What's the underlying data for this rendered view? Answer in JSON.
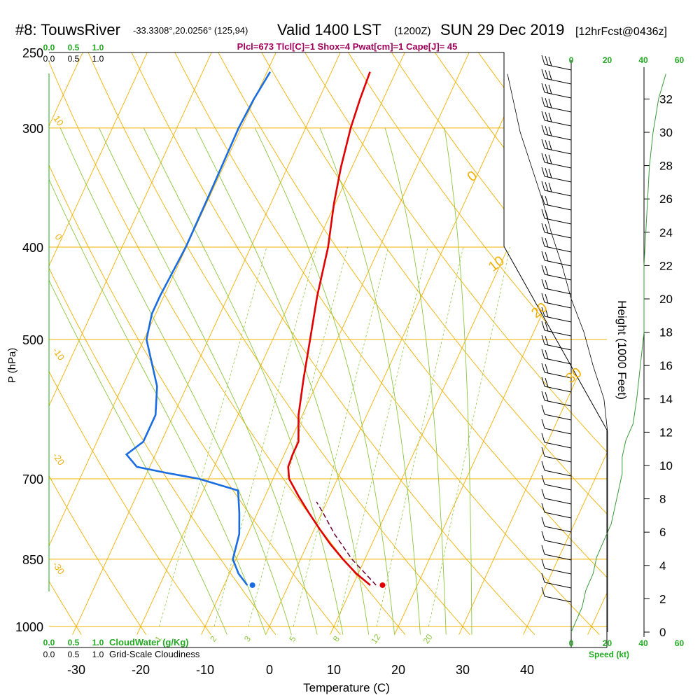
{
  "header": {
    "station": "#8: TouwsRiver",
    "coords": "-33.3308°,20.0256° (125,94)",
    "valid_main": "Valid 1400 LST",
    "valid_z": "(1200Z)",
    "date": "SUN 29 Dec 2019",
    "fcst": "[12hrFcst@0436z]",
    "indices": "Plcl=673 Tlcl[C]=1 Shox=4 Pwat[cm]=1 Cape[J]= 45"
  },
  "colors": {
    "temperature": "#e00000",
    "dewpoint": "#1a6de0",
    "isotherm": "#f0b000",
    "dry_adiabat": "#f0b000",
    "moist_adiabat": "#8cc63f",
    "mixing_ratio": "#8cc63f",
    "green_text": "#22aa22",
    "indices_text": "#a0005a",
    "parcel": "#6a0030"
  },
  "chart_data": {
    "type": "skew-t",
    "xlabel": "Temperature (C)",
    "ylabel": "P (hPa)",
    "right_axis_label": "Height (1000 Feet)",
    "speed_label": "Speed (kt)",
    "x_ticks": [
      "-30",
      "-20",
      "-10",
      "0",
      "10",
      "20",
      "30",
      "40"
    ],
    "x_tick_values": [
      -30,
      -20,
      -10,
      0,
      10,
      20,
      30,
      40
    ],
    "xlim": [
      -34,
      46
    ],
    "p_ticks": [
      "250",
      "300",
      "400",
      "500",
      "700",
      "850",
      "1000"
    ],
    "p_tick_values": [
      250,
      300,
      400,
      500,
      700,
      850,
      1000
    ],
    "plim": [
      250,
      1020
    ],
    "height_ticks": [
      "0",
      "2",
      "4",
      "6",
      "8",
      "10",
      "12",
      "14",
      "16",
      "18",
      "20",
      "22",
      "24",
      "26",
      "28",
      "30",
      "32"
    ],
    "speed_ticks": [
      "0",
      "20",
      "40",
      "60"
    ],
    "cloud_scale_green": [
      "0.0",
      "0.5",
      "1.0"
    ],
    "cloud_scale_black": [
      "0.0",
      "0.5",
      "1.0"
    ],
    "cloudwater_label": "CloudWater (g/Kg)",
    "cloudiness_label": "Grid-Scale Cloudiness",
    "isotherm_labels": [
      {
        "text": "0",
        "t": 0,
        "p": 340
      },
      {
        "text": "10",
        "t": 10,
        "p": 420
      },
      {
        "text": "20",
        "t": 20,
        "p": 470
      },
      {
        "text": "30",
        "t": 30,
        "p": 550
      }
    ],
    "dry_adiabat_labels": [
      {
        "text": "10",
        "p": 296
      },
      {
        "text": "0",
        "p": 392
      },
      {
        "text": "-10",
        "p": 520
      },
      {
        "text": "-20",
        "p": 670
      },
      {
        "text": "-30",
        "p": 872
      }
    ],
    "mixing_ratio_labels": [
      "1",
      "2",
      "3",
      "5",
      "8",
      "12",
      "20"
    ],
    "mixing_ratio_values": [
      1,
      2,
      3,
      5,
      8,
      12,
      20
    ],
    "temperature": {
      "p": [
        262,
        280,
        300,
        330,
        360,
        400,
        450,
        500,
        550,
        600,
        640,
        660,
        680,
        700,
        730,
        760,
        790,
        820,
        850,
        880,
        905
      ],
      "t": [
        -24,
        -23.6,
        -23,
        -21.7,
        -20.2,
        -18,
        -16.2,
        -14.2,
        -12.4,
        -10.6,
        -8.7,
        -8.7,
        -8.5,
        -7.5,
        -4.8,
        -2,
        0.8,
        3.6,
        6.6,
        9.7,
        12.7
      ]
    },
    "dewpoint": {
      "p": [
        262,
        280,
        300,
        350,
        400,
        450,
        470,
        500,
        560,
        600,
        640,
        660,
        680,
        690,
        700,
        720,
        760,
        800,
        850,
        880,
        905
      ],
      "t": [
        -39.5,
        -40.1,
        -40.4,
        -40.2,
        -40.1,
        -40.6,
        -40.6,
        -39.6,
        -34.6,
        -32.8,
        -32.8,
        -34.5,
        -32,
        -27,
        -21.5,
        -14.6,
        -12.8,
        -11.3,
        -10.5,
        -8.6,
        -6.4
      ]
    },
    "parcel": {
      "p": [
        905,
        850,
        800,
        760,
        740
      ],
      "t": [
        13.6,
        8,
        3.5,
        0.2,
        -1.6
      ]
    },
    "surface_temp_point": {
      "p": 905,
      "t": 14.6
    },
    "surface_dewpoint_point": {
      "p": 905,
      "t": -5.6
    },
    "wind_speed_kt": {
      "h": [
        0,
        1.5,
        2.5,
        3.5,
        4.5,
        5.5,
        6.5,
        7.5,
        8.5,
        9.5,
        10.5,
        11.5,
        12.5,
        14,
        16,
        18,
        20,
        22,
        24,
        26,
        28,
        30,
        32,
        33.5
      ],
      "v": [
        0,
        6,
        8,
        12,
        14,
        18,
        22,
        24,
        26,
        28,
        28,
        30,
        34,
        36,
        38,
        40,
        40,
        40,
        41,
        42,
        43,
        45,
        48,
        52
      ]
    },
    "temp_speed_envelope": {
      "h": [
        0,
        2,
        4,
        6,
        8,
        10,
        12,
        14,
        16,
        18,
        20,
        22,
        24,
        26,
        28,
        30,
        32,
        33.5
      ],
      "v": [
        20,
        20,
        20,
        20,
        20,
        20,
        20,
        18,
        12,
        7,
        0,
        -5,
        -11,
        -16,
        -22,
        -28,
        -32,
        -35
      ]
    }
  }
}
